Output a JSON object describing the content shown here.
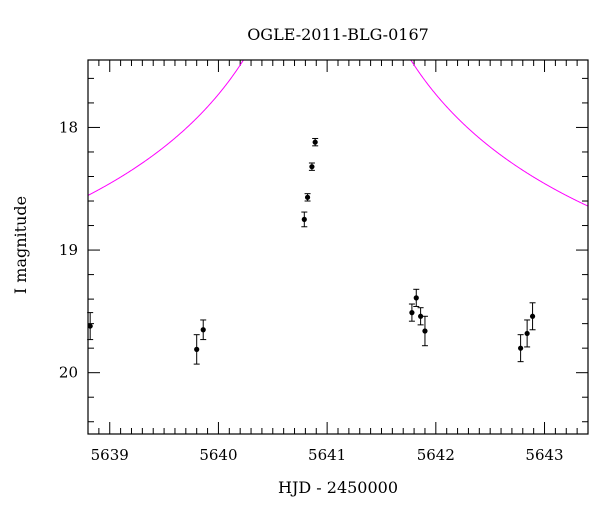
{
  "chart_data": {
    "type": "scatter",
    "title": "OGLE-2011-BLG-0167",
    "xlabel": "HJD - 2450000",
    "ylabel": "I magnitude",
    "xlim": [
      5638.8,
      5643.4
    ],
    "ylim": [
      20.5,
      17.45
    ],
    "y_inverted": true,
    "grid": false,
    "x_major_ticks": [
      5639,
      5640,
      5641,
      5642,
      5643
    ],
    "x_tick_labels": [
      "5639",
      "5640",
      "5641",
      "5642",
      "5643"
    ],
    "y_major_ticks": [
      18,
      19,
      20
    ],
    "y_tick_labels": [
      "18",
      "19",
      "20"
    ],
    "series": [
      {
        "marker": "filled-circle",
        "color": "#000000",
        "points": [
          {
            "x": 5638.82,
            "y": 19.62,
            "err": 0.11
          },
          {
            "x": 5639.8,
            "y": 19.81,
            "err": 0.12
          },
          {
            "x": 5639.86,
            "y": 19.65,
            "err": 0.08
          },
          {
            "x": 5640.79,
            "y": 18.75,
            "err": 0.06
          },
          {
            "x": 5640.82,
            "y": 18.57,
            "err": 0.03
          },
          {
            "x": 5640.86,
            "y": 18.32,
            "err": 0.03
          },
          {
            "x": 5640.89,
            "y": 18.12,
            "err": 0.03
          },
          {
            "x": 5641.78,
            "y": 19.51,
            "err": 0.07
          },
          {
            "x": 5641.82,
            "y": 19.39,
            "err": 0.07
          },
          {
            "x": 5641.86,
            "y": 19.54,
            "err": 0.07
          },
          {
            "x": 5641.9,
            "y": 19.66,
            "err": 0.12
          },
          {
            "x": 5642.78,
            "y": 19.8,
            "err": 0.11
          },
          {
            "x": 5642.84,
            "y": 19.68,
            "err": 0.11
          },
          {
            "x": 5642.89,
            "y": 19.54,
            "err": 0.11
          }
        ]
      },
      {
        "type": "line",
        "color": "#ff00ff",
        "model": {
          "kind": "microlensing-point-lens",
          "t0": 5641.0,
          "u0": 0.006,
          "tE": 7.0,
          "i_baseline": 19.85
        }
      }
    ]
  }
}
